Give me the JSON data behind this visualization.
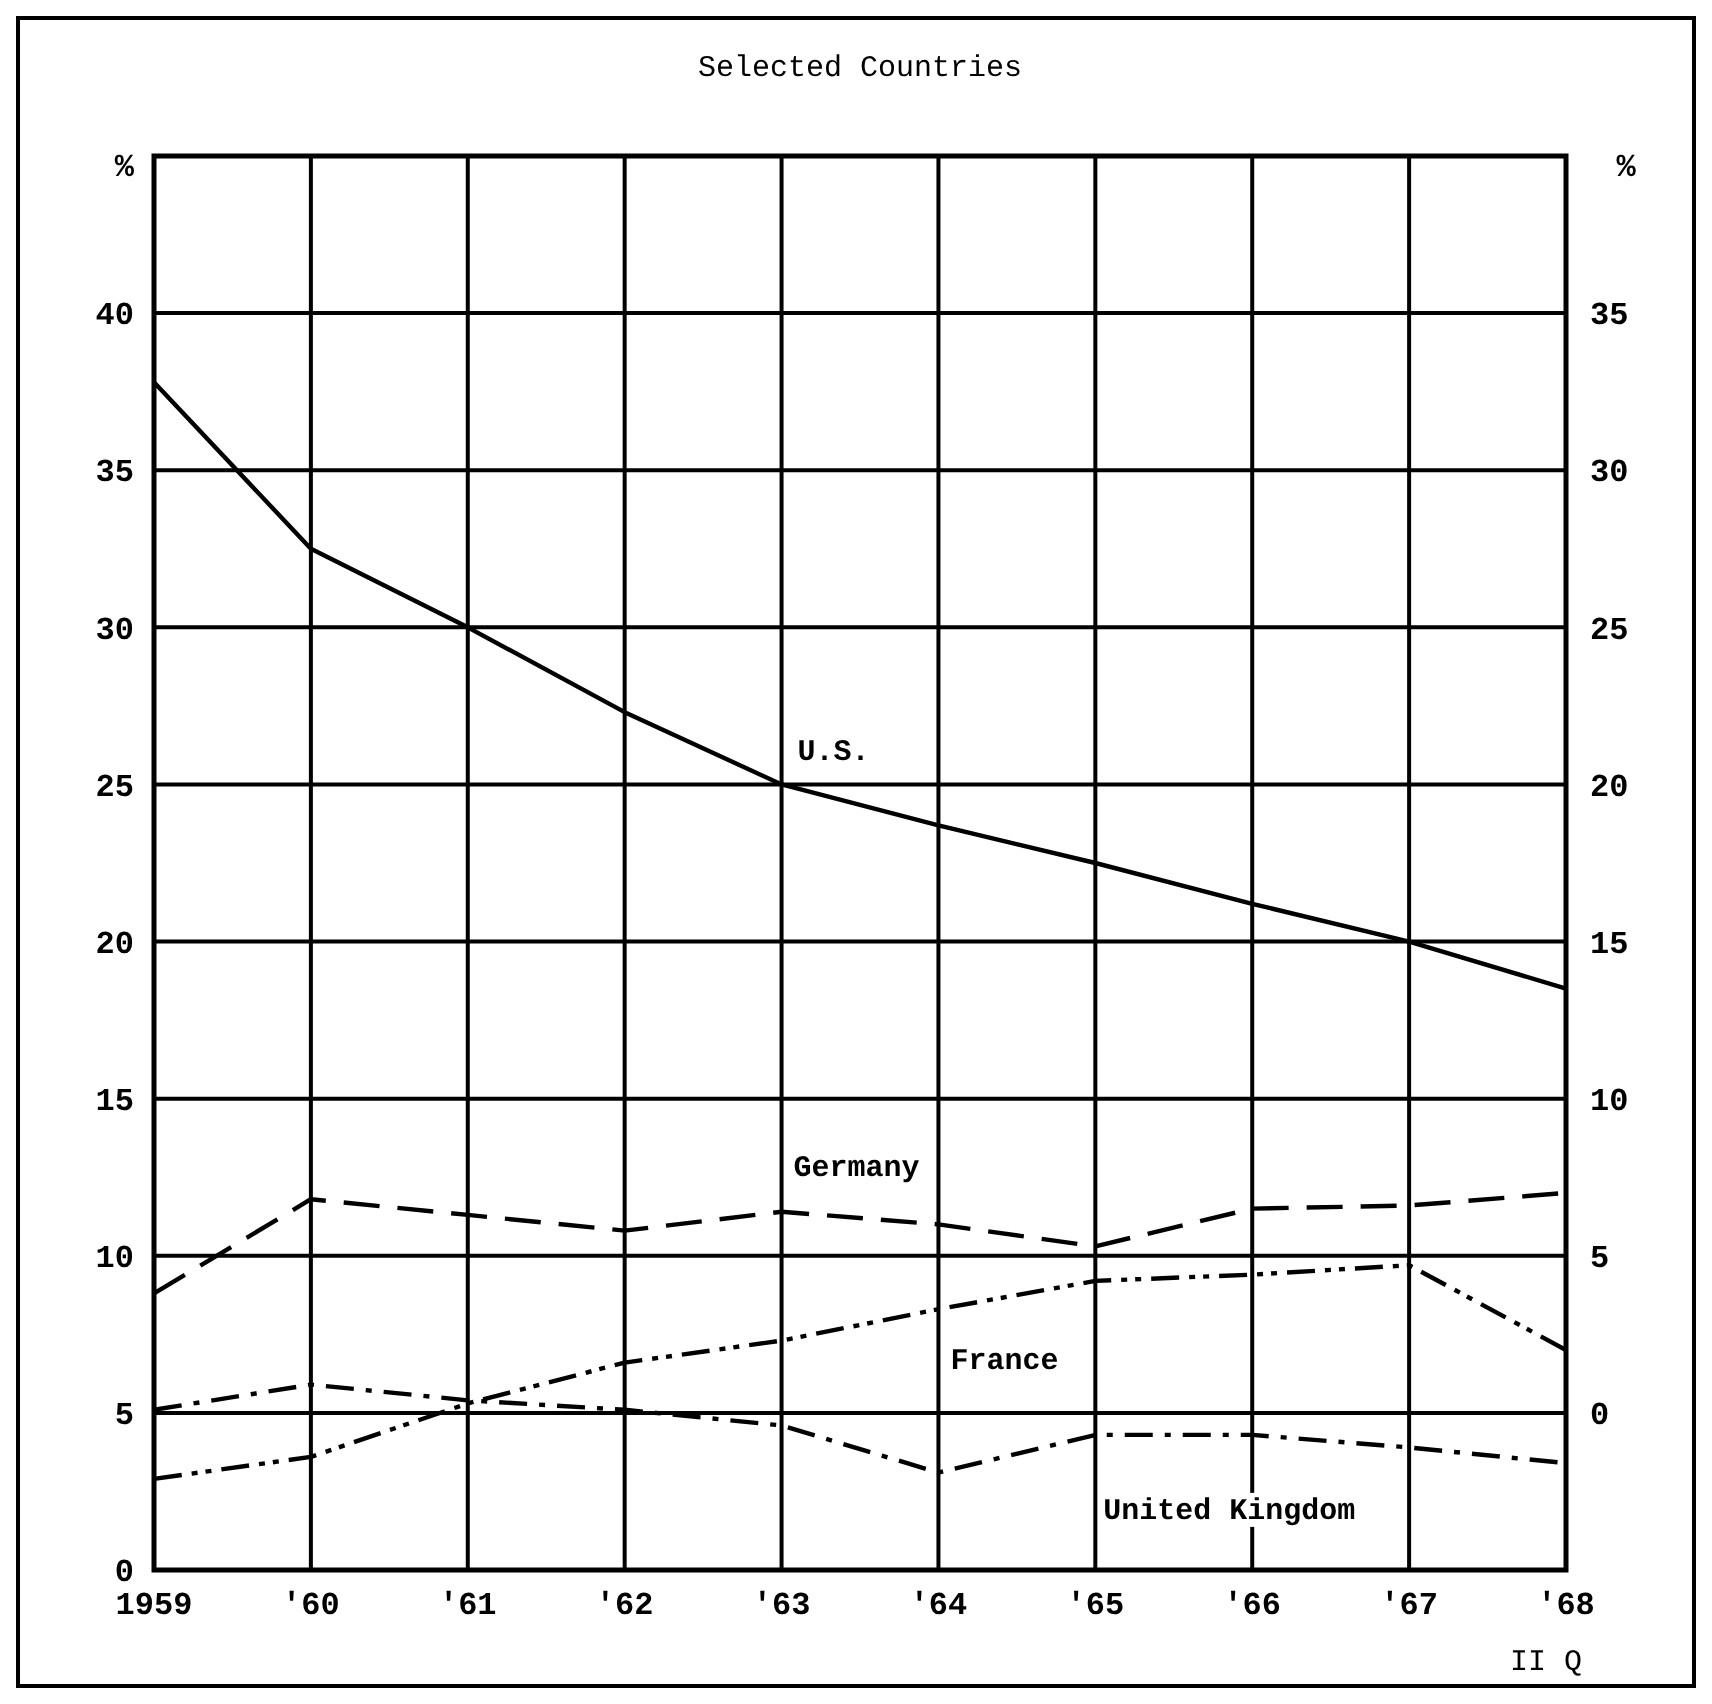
{
  "chart_data": {
    "type": "line",
    "title": "Selected Countries",
    "ylabel": "%",
    "y2label": "%",
    "x": [
      1959,
      1960,
      1961,
      1962,
      1963,
      1964,
      1965,
      1966,
      1967,
      1968
    ],
    "xlim": [
      1959,
      1968
    ],
    "xticks": [
      1959,
      {
        "value": 1960,
        "label": "'60"
      },
      {
        "value": 1961,
        "label": "'61"
      },
      {
        "value": 1962,
        "label": "'62"
      },
      {
        "value": 1963,
        "label": "'63"
      },
      {
        "value": 1964,
        "label": "'64"
      },
      {
        "value": 1965,
        "label": "'65"
      },
      {
        "value": 1966,
        "label": "'66"
      },
      {
        "value": 1967,
        "label": "'67"
      },
      {
        "value": 1968,
        "label": "'68"
      }
    ],
    "ylim": [
      0,
      45
    ],
    "yticks": [
      0,
      5,
      10,
      15,
      20,
      25,
      30,
      35,
      40
    ],
    "y2lim": [
      -5,
      40
    ],
    "y2ticks": [
      0,
      5,
      10,
      15,
      20,
      25,
      30,
      35
    ],
    "grid": true,
    "marker": "none",
    "annotations": [
      "II Q"
    ],
    "series": [
      {
        "name": "U.S.",
        "color": "#000000",
        "line_style": "solid",
        "values": [
          37.8,
          32.5,
          30.0,
          27.3,
          25.0,
          23.7,
          22.5,
          21.2,
          20.0,
          18.5
        ]
      },
      {
        "name": "Germany",
        "color": "#000000",
        "line_style": "dashed",
        "values": [
          8.8,
          11.8,
          11.3,
          10.8,
          11.4,
          11.0,
          10.3,
          11.5,
          11.6,
          12.0
        ]
      },
      {
        "name": "France",
        "color": "#000000",
        "line_style": "dashdotdot",
        "values": [
          2.9,
          3.6,
          5.3,
          6.6,
          7.3,
          8.3,
          9.2,
          9.4,
          9.7,
          7.0
        ]
      },
      {
        "name": "United Kingdom",
        "color": "#000000",
        "line_style": "dashdot",
        "values": [
          5.1,
          5.9,
          5.4,
          5.1,
          4.6,
          3.1,
          4.3,
          4.3,
          3.9,
          3.4
        ]
      }
    ]
  }
}
